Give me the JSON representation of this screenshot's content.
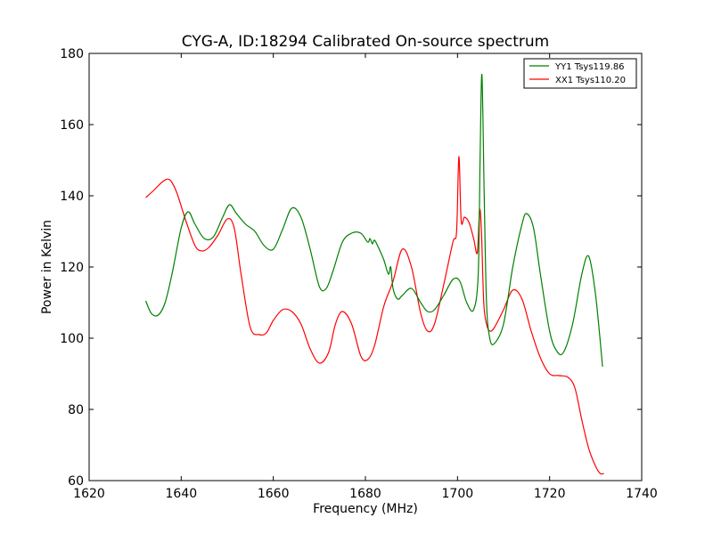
{
  "chart_data": {
    "type": "line",
    "title": "CYG-A, ID:18294 Calibrated On-source spectrum",
    "xlabel": "Frequency (MHz)",
    "ylabel": "Power in Kelvin",
    "xlim": [
      1620,
      1740
    ],
    "ylim": [
      60,
      180
    ],
    "xticks": [
      "1620",
      "1640",
      "1660",
      "1680",
      "1700",
      "1720",
      "1740"
    ],
    "yticks": [
      "60",
      "80",
      "100",
      "120",
      "140",
      "160",
      "180"
    ],
    "grid": false,
    "legend": "top-right",
    "series": [
      {
        "name": "YY1 Tsys119.86",
        "color": "#008000",
        "x": [
          1632.3,
          1633.5,
          1635,
          1636.5,
          1638,
          1640,
          1641.5,
          1643,
          1645,
          1647,
          1649,
          1650.5,
          1652,
          1654,
          1656,
          1658,
          1660,
          1662,
          1664,
          1666,
          1668,
          1670,
          1671.5,
          1673,
          1675,
          1677,
          1679,
          1680.5,
          1681,
          1681.5,
          1682,
          1683,
          1684,
          1685,
          1685.5,
          1686,
          1687,
          1688,
          1690,
          1692,
          1693.5,
          1695,
          1697,
          1699,
          1700.5,
          1702,
          1703.5,
          1704.5,
          1704.9,
          1705.3,
          1705.8,
          1706.3,
          1707,
          1708,
          1710,
          1712,
          1714,
          1715,
          1716.5,
          1718,
          1720,
          1721.5,
          1723,
          1725,
          1727,
          1728.5,
          1730,
          1731.5
        ],
        "y": [
          110.5,
          107,
          106.5,
          110,
          118,
          131,
          135.5,
          132,
          128,
          128.5,
          134,
          137.5,
          135,
          132,
          130,
          126,
          125,
          130.5,
          136.5,
          134,
          125,
          114.5,
          114,
          119,
          127,
          129.5,
          129.5,
          127,
          128,
          126.5,
          127.5,
          125,
          122,
          118,
          120,
          114,
          111,
          112,
          114,
          110,
          107.5,
          108,
          112,
          116.5,
          116,
          110,
          108,
          118,
          150,
          174,
          140,
          110,
          100,
          98.5,
          104,
          120,
          132,
          135,
          131,
          118,
          102,
          96.5,
          96,
          104,
          118,
          123,
          112,
          92
        ]
      },
      {
        "name": "XX1 Tsys110.20",
        "color": "#ff0000",
        "x": [
          1632.3,
          1634,
          1636,
          1637.5,
          1639,
          1641,
          1643,
          1644.5,
          1646,
          1648,
          1650,
          1651.5,
          1653,
          1655,
          1657,
          1658.5,
          1660,
          1662,
          1664,
          1666,
          1668,
          1670,
          1672,
          1673.5,
          1675,
          1677,
          1679,
          1680.5,
          1682,
          1684,
          1686,
          1688,
          1690,
          1692,
          1693.5,
          1695,
          1697,
          1699,
          1699.8,
          1700.3,
          1700.8,
          1701.5,
          1702.5,
          1703.5,
          1704.3,
          1704.8,
          1705.2,
          1705.7,
          1706.3,
          1707,
          1708,
          1710,
          1712,
          1714,
          1716,
          1718,
          1720,
          1722,
          1724,
          1725.5,
          1727,
          1728.5,
          1730,
          1731,
          1731.8
        ],
        "y": [
          139.5,
          141.5,
          144,
          144.5,
          141,
          133,
          126,
          124.5,
          125.5,
          129,
          133.5,
          131,
          118,
          103,
          101,
          101.5,
          105,
          108,
          107.5,
          104,
          97,
          93,
          96,
          104,
          107.5,
          104,
          95,
          94,
          98,
          109,
          116,
          125,
          120,
          107,
          102,
          104,
          115,
          127,
          130,
          151,
          133,
          134,
          132.5,
          128,
          124,
          136,
          130,
          110,
          104,
          102,
          103,
          108,
          113.5,
          111,
          102,
          94.5,
          90,
          89.5,
          89,
          86,
          77,
          69,
          64,
          62,
          62
        ]
      }
    ]
  }
}
